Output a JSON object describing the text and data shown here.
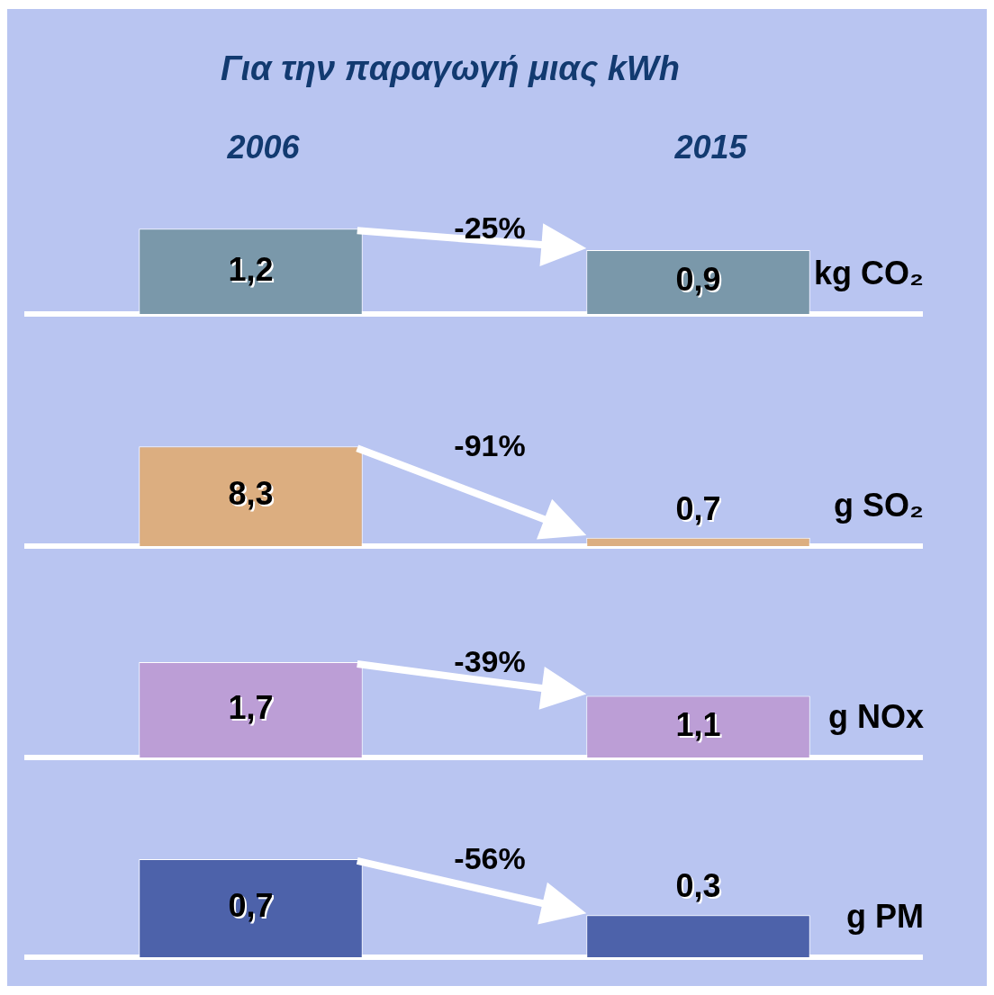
{
  "chart_data": [
    {
      "type": "bar",
      "title": "Για την παραγωγή μιας kWh",
      "categories": [
        "2006",
        "2015"
      ],
      "values": [
        1.2,
        0.9
      ],
      "value_labels": [
        "1,2",
        "0,9"
      ],
      "colors": [
        "#7a98aa",
        "#7a98aa"
      ],
      "tick_labels": "x",
      "grid": false,
      "legend": false,
      "annotations": [
        "-25%",
        "kg CO₂"
      ]
    },
    {
      "type": "bar",
      "categories": [
        null,
        null
      ],
      "values": [
        8.3,
        0.7
      ],
      "value_labels": [
        "8,3",
        "0,7"
      ],
      "colors": [
        "#dcae80",
        "#dcae80"
      ],
      "tick_labels": false,
      "grid": false,
      "legend": false,
      "annotations": [
        "-91%",
        "g SO₂"
      ]
    },
    {
      "type": "bar",
      "categories": [
        null,
        null
      ],
      "values": [
        1.7,
        1.1
      ],
      "value_labels": [
        "1,7",
        "1,1"
      ],
      "colors": [
        "#bc9ed6",
        "#bc9ed6"
      ],
      "tick_labels": false,
      "grid": false,
      "legend": false,
      "annotations": [
        "-39%",
        "g NOx"
      ]
    },
    {
      "type": "bar",
      "categories": [
        null,
        null
      ],
      "values": [
        0.7,
        0.3
      ],
      "value_labels": [
        "0,7",
        "0,3"
      ],
      "colors": [
        "#4d62aa",
        "#4d62aa"
      ],
      "tick_labels": false,
      "grid": false,
      "legend": false,
      "annotations": [
        "-56%",
        "g PM"
      ]
    }
  ]
}
